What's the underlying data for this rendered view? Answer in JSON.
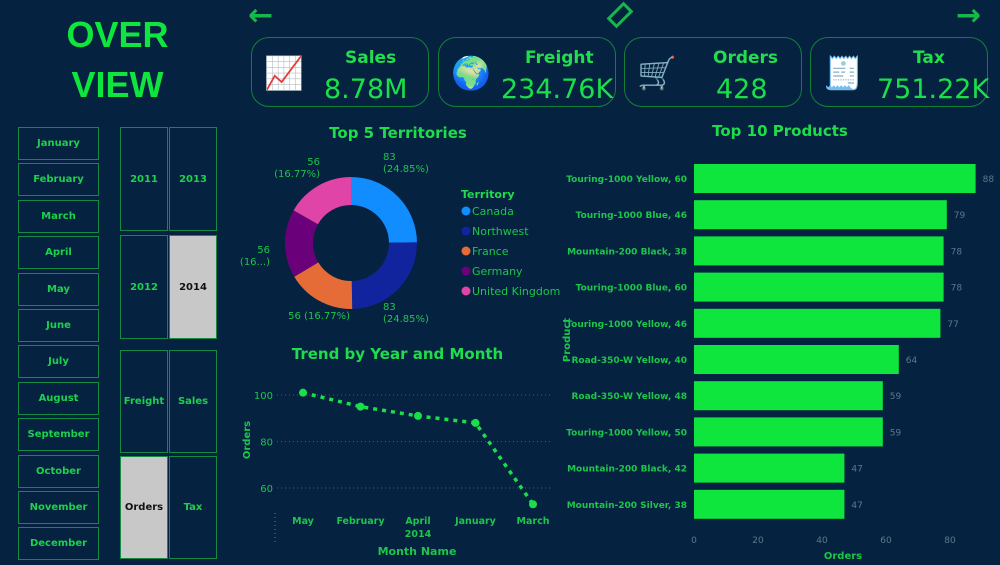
{
  "title": {
    "line1": "OVER",
    "line2": "VIEW"
  },
  "nav": {
    "back_icon": "arrow-left",
    "eraser_icon": "eraser",
    "forward_icon": "arrow-right"
  },
  "kpis": [
    {
      "label": "Sales",
      "value": "8.78M",
      "icon": "hand-chart-icon"
    },
    {
      "label": "Freight",
      "value": "234.76K",
      "icon": "globe-shipping-icon"
    },
    {
      "label": "Orders",
      "value": "428",
      "icon": "cart-icon"
    },
    {
      "label": "Tax",
      "value": "751.22K",
      "icon": "tax-doc-icon"
    }
  ],
  "months": [
    "January",
    "February",
    "March",
    "April",
    "May",
    "June",
    "July",
    "August",
    "September",
    "October",
    "November",
    "December"
  ],
  "years": [
    {
      "label": "2011",
      "selected": false
    },
    {
      "label": "2013",
      "selected": false
    },
    {
      "label": "2012",
      "selected": false
    },
    {
      "label": "2014",
      "selected": true
    }
  ],
  "measures": [
    {
      "label": "Freight",
      "selected": false
    },
    {
      "label": "Sales",
      "selected": false
    },
    {
      "label": "Orders",
      "selected": true
    },
    {
      "label": "Tax",
      "selected": false
    }
  ],
  "chart_data": [
    {
      "type": "pie",
      "title": "Top 5 Territories",
      "legend_title": "Territory",
      "legend_position": "right",
      "slices": [
        {
          "name": "Canada",
          "value": 83,
          "label": "83 (24.85%)",
          "color": "#118dff"
        },
        {
          "name": "Northwest",
          "value": 83,
          "label": "83 (24.85%)",
          "color": "#12239e"
        },
        {
          "name": "France",
          "value": 56,
          "label": "56 (16.77%)",
          "color": "#e66c37"
        },
        {
          "name": "Germany",
          "value": 56,
          "label": "56 (16...)",
          "color": "#6b007b"
        },
        {
          "name": "United Kingdom",
          "value": 56,
          "label": "56 (16.77%)",
          "color": "#e044a7"
        }
      ]
    },
    {
      "type": "line",
      "title": "Trend by Year and Month",
      "xlabel": "Month Name",
      "ylabel": "Orders",
      "x_group_label": "2014",
      "categories": [
        "May",
        "February",
        "April",
        "January",
        "March"
      ],
      "values": [
        101,
        95,
        91,
        88,
        53
      ],
      "ylim": [
        50,
        105
      ],
      "yticks": [
        60,
        80,
        100
      ],
      "grid": true,
      "color": "#19e04a"
    },
    {
      "type": "bar",
      "orientation": "horizontal",
      "title": "Top 10 Products",
      "xlabel": "Orders",
      "ylabel": "Product",
      "categories": [
        "Touring-1000 Yellow, 60",
        "Touring-1000 Blue, 46",
        "Mountain-200 Black, 38",
        "Touring-1000 Blue, 60",
        "Touring-1000 Yellow, 46",
        "Road-350-W Yellow, 40",
        "Road-350-W Yellow, 48",
        "Touring-1000 Yellow, 50",
        "Mountain-200 Black, 42",
        "Mountain-200 Silver, 38"
      ],
      "values": [
        88,
        79,
        78,
        78,
        77,
        64,
        59,
        59,
        47,
        47
      ],
      "xlim": [
        0,
        90
      ],
      "xticks": [
        0,
        20,
        40,
        60,
        80
      ],
      "color": "#0ee63e"
    }
  ]
}
